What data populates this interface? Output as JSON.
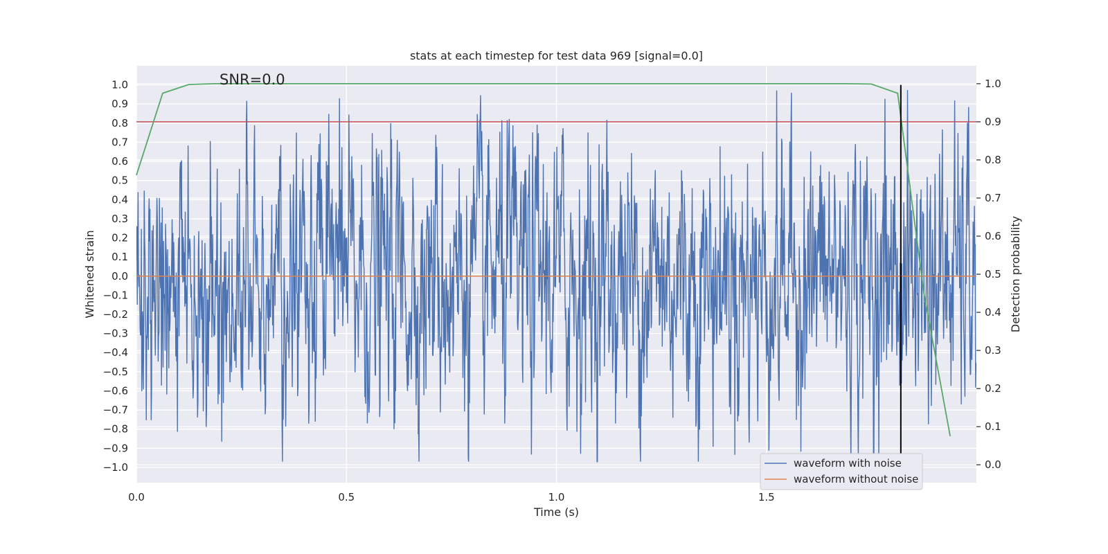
{
  "chart_data": {
    "type": "line",
    "title": "stats at each timestep for test data 969 [signal=0.0]",
    "xlabel": "Time (s)",
    "ylabel_left": "Whitened strain",
    "ylabel_right": "Detection probability",
    "annotation": "SNR=0.0",
    "xlim": [
      0.0,
      2.0
    ],
    "ylim_left": [
      -1.08,
      1.1
    ],
    "ylim_right": [
      -0.047,
      1.047
    ],
    "xticks": [
      0.0,
      0.5,
      1.0,
      1.5
    ],
    "xtick_labels": [
      "0.0",
      "0.5",
      "1.0",
      "1.5"
    ],
    "yticks_left": [
      1.0,
      0.9,
      0.8,
      0.7,
      0.6,
      0.5,
      0.4,
      0.3,
      0.2,
      0.1,
      0.0,
      -0.1,
      -0.2,
      -0.3,
      -0.4,
      -0.5,
      -0.6,
      -0.7,
      -0.8,
      -0.9,
      -1.0
    ],
    "ytick_labels_left": [
      "1.0",
      "0.9",
      "0.8",
      "0.7",
      "0.6",
      "0.5",
      "0.4",
      "0.3",
      "0.2",
      "0.1",
      "0.0",
      "−0.1",
      "−0.2",
      "−0.3",
      "−0.4",
      "−0.5",
      "−0.6",
      "−0.7",
      "−0.8",
      "−0.9",
      "−1.0"
    ],
    "yticks_right": [
      1.0,
      0.9,
      0.8,
      0.7,
      0.6,
      0.5,
      0.4,
      0.3,
      0.2,
      0.1,
      0.0
    ],
    "ytick_labels_right": [
      "1.0",
      "0.9",
      "0.8",
      "0.7",
      "0.6",
      "0.5",
      "0.4",
      "0.3",
      "0.2",
      "0.1",
      "0.0"
    ],
    "threshold_right": 0.9,
    "marker_time": 1.82,
    "marker_range_left": [
      -0.95,
      1.0
    ],
    "series": [
      {
        "name": "waveform with noise",
        "color": "#4c72b0",
        "axis": "left",
        "description": "random noise waveform, ~2048 samples, roughly within [-1, 1]",
        "samples": 2048,
        "seed": 969
      },
      {
        "name": "waveform without noise",
        "color": "#dd8452",
        "axis": "left",
        "x": [
          0.0,
          2.0
        ],
        "y": [
          0.0,
          0.0
        ]
      },
      {
        "name": "detection probability",
        "color": "#55a868",
        "axis": "right",
        "x": [
          0.0,
          0.0625,
          0.125,
          0.1875,
          0.25,
          0.5,
          1.0,
          1.5,
          1.625,
          1.6875,
          1.75,
          1.8125,
          1.875,
          1.9375
        ],
        "y": [
          0.76,
          0.975,
          0.998,
          1.0,
          1.0,
          1.0,
          1.0,
          1.0,
          1.0,
          1.0,
          0.999,
          0.975,
          0.45,
          0.075
        ]
      }
    ],
    "legend_loc": "lower-right",
    "grid": true,
    "colors": {
      "background": "#eaeaf2",
      "grid": "#ffffff",
      "threshold": "#c44e52",
      "marker": "#000000"
    }
  }
}
